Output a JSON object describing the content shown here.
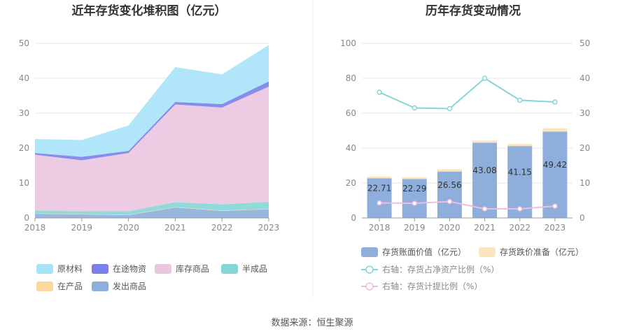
{
  "source": "数据来源：恒生聚源",
  "chart_data": [
    {
      "type": "area",
      "stacked": true,
      "title": "近年存货变化堆积图（亿元）",
      "x": [
        "2018",
        "2019",
        "2020",
        "2021",
        "2022",
        "2023"
      ],
      "yticks": [
        "0",
        "10",
        "20",
        "30",
        "40",
        "50"
      ],
      "ylim": [
        0,
        50
      ],
      "grid": true,
      "legend_position": "bottom",
      "series": [
        {
          "name": "发出商品",
          "color": "#8eaedc",
          "values": [
            1.2,
            1.0,
            0.8,
            3.0,
            2.0,
            2.5
          ]
        },
        {
          "name": "在产品",
          "color": "#fdd79b",
          "values": [
            0.1,
            0.1,
            0.1,
            0.1,
            0.1,
            0.1
          ]
        },
        {
          "name": "半成品",
          "color": "#84d6d5",
          "values": [
            0.8,
            0.8,
            1.0,
            1.4,
            1.8,
            2.0
          ]
        },
        {
          "name": "库存商品",
          "color": "#ebc6e0",
          "values": [
            16.0,
            14.6,
            16.7,
            28.0,
            27.7,
            33.0
          ]
        },
        {
          "name": "在途物资",
          "color": "#7b7fe8",
          "values": [
            0.5,
            1.0,
            0.6,
            0.7,
            1.0,
            1.5
          ]
        },
        {
          "name": "原材料",
          "color": "#a8e3fa",
          "values": [
            4.0,
            4.8,
            7.3,
            10.0,
            8.5,
            10.4
          ]
        }
      ],
      "legend_order": [
        "原材料",
        "在途物资",
        "库存商品",
        "半成品",
        "在产品",
        "发出商品"
      ]
    },
    {
      "type": "bar",
      "stacked": true,
      "title": "历年存货变动情况",
      "x": [
        "2018",
        "2019",
        "2020",
        "2021",
        "2022",
        "2023"
      ],
      "yticks_left": [
        "0",
        "20",
        "40",
        "60",
        "80",
        "100"
      ],
      "yticks_right": [
        "0",
        "10",
        "20",
        "30",
        "40",
        "50"
      ],
      "ylim_left": [
        0,
        100
      ],
      "ylim_right": [
        0,
        50
      ],
      "grid": true,
      "legend_position": "bottom",
      "series": [
        {
          "name": "存货账面价值（亿元）",
          "kind": "bar",
          "axis": "left",
          "color": "#8eaedc",
          "values": [
            22.71,
            22.29,
            26.56,
            43.08,
            41.15,
            49.42
          ],
          "labels": [
            "22.71",
            "22.29",
            "26.56",
            "43.08",
            "41.15",
            "49.42"
          ]
        },
        {
          "name": "存货跌价准备（亿元）",
          "kind": "bar",
          "axis": "left",
          "color": "#fbe5bd",
          "values": [
            1.0,
            1.0,
            1.3,
            1.2,
            1.2,
            1.9
          ]
        },
        {
          "name": "右轴：存货占净资产比例（%）",
          "kind": "line",
          "axis": "right",
          "color": "#84d6d5",
          "values": [
            36.0,
            31.5,
            31.3,
            40.0,
            33.7,
            33.2
          ]
        },
        {
          "name": "右轴：存货计提比例（%）",
          "kind": "line",
          "axis": "right",
          "color": "#eebde0",
          "values": [
            4.3,
            4.2,
            4.7,
            2.6,
            2.6,
            3.4
          ]
        }
      ]
    }
  ]
}
